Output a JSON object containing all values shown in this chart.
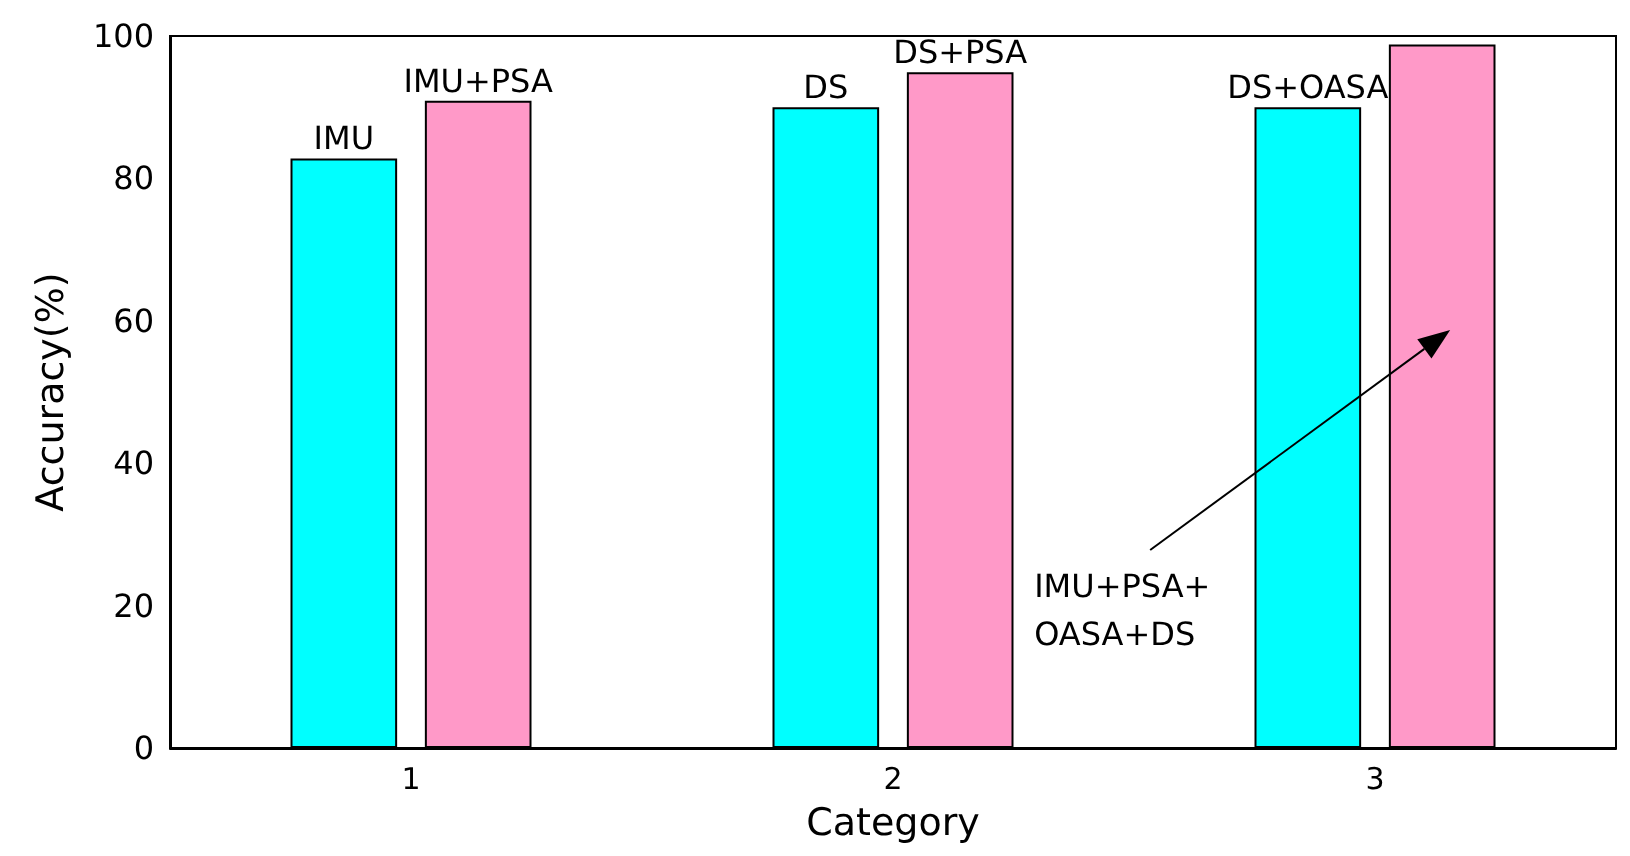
{
  "chart_data": {
    "type": "bar",
    "xlabel": "Category",
    "ylabel": "Accuracy(%)",
    "categories": [
      "1",
      "2",
      "3"
    ],
    "series": [
      {
        "color": "#00ffff",
        "values": [
          82.8,
          90,
          90
        ],
        "value_labels": [
          "IMU",
          "DS",
          "DS+OASA"
        ]
      },
      {
        "color": "#ff99c8",
        "values": [
          90.9,
          94.9,
          98.8
        ],
        "value_labels": [
          "IMU+PSA",
          "DS+PSA",
          null
        ]
      }
    ],
    "ylim": [
      0,
      100
    ],
    "yticks": [
      0,
      20,
      40,
      60,
      80,
      100
    ],
    "grid": false,
    "legend": false,
    "annotations": [
      "IMU+PSA+\nOASA+DS"
    ]
  }
}
